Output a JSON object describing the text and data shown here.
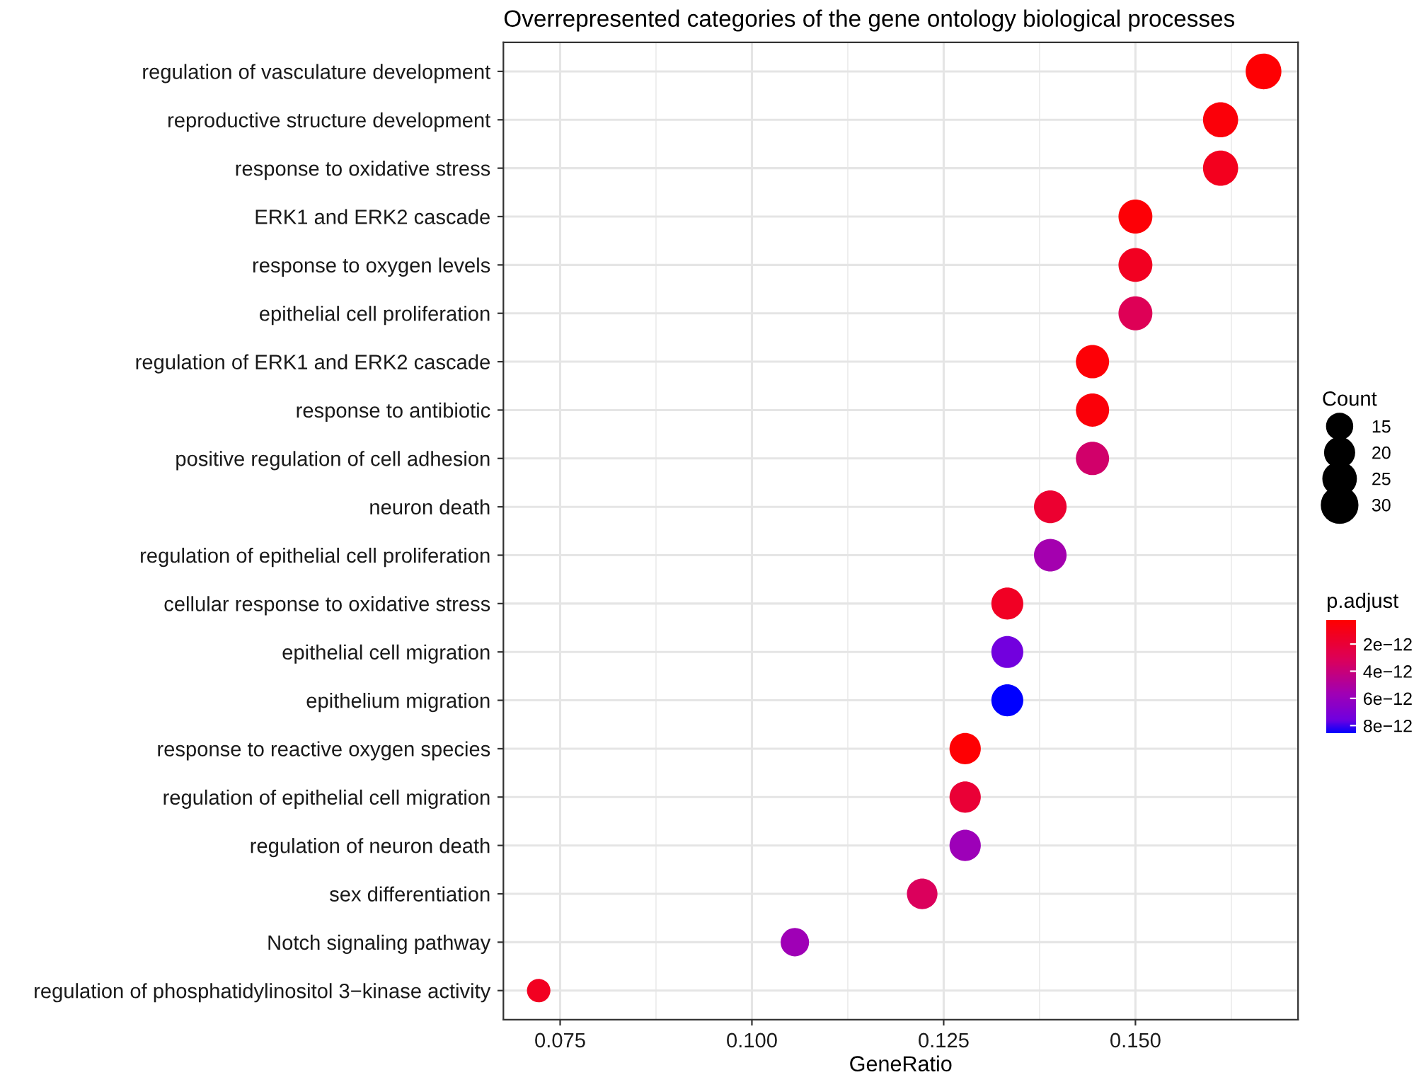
{
  "chart_data": {
    "type": "bubble",
    "title": "Overrepresented categories of the gene ontology biological processes",
    "xlabel": "GeneRatio",
    "legend_title": "Count",
    "clabel": "p.adjust",
    "categories": [
      "regulation of vasculature development",
      "reproductive structure development",
      "response to oxidative stress",
      "ERK1 and ERK2 cascade",
      "response to oxygen levels",
      "epithelial cell proliferation",
      "regulation of ERK1 and ERK2 cascade",
      "response to antibiotic",
      "positive regulation of cell adhesion",
      "neuron death",
      "regulation of epithelial cell proliferation",
      "cellular response to oxidative stress",
      "epithelial cell migration",
      "epithelium migration",
      "response to reactive oxygen species",
      "regulation of epithelial cell migration",
      "regulation of neuron death",
      "sex differentiation",
      "Notch signaling pathway",
      "regulation of phosphatidylinositol 3−kinase activity"
    ],
    "values": [
      0.1667,
      0.1611,
      0.1611,
      0.15,
      0.15,
      0.15,
      0.1444,
      0.1444,
      0.1444,
      0.1389,
      0.1389,
      0.1333,
      0.1333,
      0.1333,
      0.1278,
      0.1278,
      0.1278,
      0.1222,
      0.1056,
      0.0722
    ],
    "sizes": [
      30,
      29,
      29,
      27,
      27,
      27,
      26,
      26,
      26,
      25,
      25,
      24,
      24,
      24,
      23,
      23,
      23,
      22,
      19,
      13
    ],
    "size_legend": [
      {
        "value": 15,
        "label": "15"
      },
      {
        "value": 20,
        "label": "20"
      },
      {
        "value": 25,
        "label": "25"
      },
      {
        "value": 30,
        "label": "30"
      }
    ],
    "orientation": "horizontal",
    "cvalues": [
      3e-13,
      5e-13,
      1.2e-12,
      4e-13,
      1.3e-12,
      3e-12,
      4e-13,
      5e-13,
      3.6e-12,
      1.8e-12,
      5.5e-12,
      1.4e-12,
      7.5e-12,
      8.6e-12,
      3e-13,
      2e-12,
      5.8e-12,
      3.2e-12,
      5.7e-12,
      1.3e-12
    ],
    "clim": [
      2e-13,
      8.6e-12
    ],
    "cticks": [
      {
        "value": 2e-12,
        "label": "2e−12"
      },
      {
        "value": 4e-12,
        "label": "4e−12"
      },
      {
        "value": 6e-12,
        "label": "6e−12"
      },
      {
        "value": 8e-12,
        "label": "8e−12"
      }
    ],
    "xlim": [
      0.0676,
      0.1712
    ],
    "xticks": [
      {
        "value": 0.075,
        "label": "0.075"
      },
      {
        "value": 0.1,
        "label": "0.100"
      },
      {
        "value": 0.125,
        "label": "0.125"
      },
      {
        "value": 0.15,
        "label": "0.150"
      }
    ],
    "grid": true,
    "marker": "circle"
  }
}
